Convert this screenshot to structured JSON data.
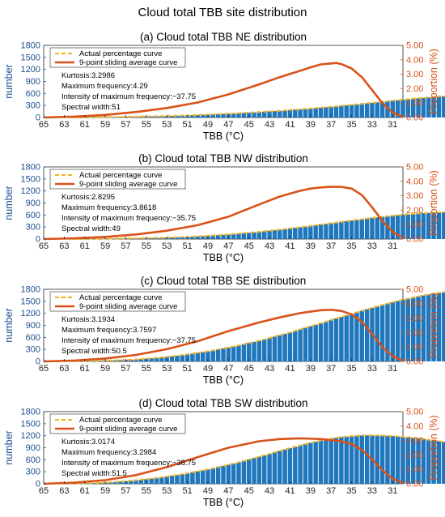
{
  "figure": {
    "title": "Cloud total TBB site distribution"
  },
  "colors": {
    "bar": "#1f77bd",
    "bar_edge": "#0f5a95",
    "dash": "#f5b21b",
    "sliding": "#d95319",
    "left_axis": "#1d4f91",
    "right_axis": "#d95319"
  },
  "chart_data": [
    {
      "type": "bar",
      "title": "(a) Cloud total TBB NE distribution",
      "xlabel": "TBB (°C)",
      "ylabel": "number",
      "ylabel_right": "Proportion (%)",
      "xlim": [
        65,
        30
      ],
      "ylim": [
        0,
        1800
      ],
      "ylim_right": [
        0,
        5
      ],
      "x_ticks": [
        "65",
        "63",
        "61",
        "59",
        "57",
        "55",
        "53",
        "51",
        "49",
        "47",
        "45",
        "43",
        "41",
        "39",
        "37",
        "35",
        "33",
        "31"
      ],
      "y_ticks": [
        "0",
        "300",
        "600",
        "900",
        "1200",
        "1500",
        "1800"
      ],
      "y_ticks_right": [
        "0.00",
        "1.00",
        "2.00",
        "3.00",
        "4.00",
        "5.00"
      ],
      "legend": [
        "Actual percentage curve",
        "9-point sliding average curve"
      ],
      "stats": [
        "Kurtosis:3.2986",
        "Maximum frequency:4.29",
        "Intensity of maximum frequency:−37.75",
        "Spectral width:51"
      ],
      "bars": {
        "x_start": 62.5,
        "step": 0.5,
        "values": [
          4,
          5,
          6,
          7,
          8,
          9,
          10,
          11,
          12,
          14,
          16,
          18,
          20,
          22,
          24,
          26,
          29,
          32,
          35,
          38,
          41,
          45,
          49,
          53,
          58,
          63,
          68,
          73,
          78,
          84,
          90,
          96,
          102,
          108,
          115,
          122,
          129,
          136,
          144,
          152,
          160,
          168,
          177,
          186,
          195,
          205,
          215,
          225,
          235,
          246,
          257,
          268,
          280,
          292,
          304,
          316,
          328,
          341,
          354,
          367,
          380,
          393,
          406,
          419,
          432,
          445,
          457,
          469,
          480,
          491,
          501,
          511,
          520,
          529,
          537,
          545,
          552,
          558,
          563,
          567,
          570,
          572,
          572,
          570,
          566,
          560,
          550,
          536,
          517,
          493,
          463,
          428,
          388,
          343,
          295,
          244,
          190,
          135,
          85,
          45
        ]
      },
      "sliding": {
        "x": [
          65,
          62,
          59,
          56,
          53,
          50,
          47,
          44,
          42,
          40,
          39,
          38,
          37,
          36.5,
          36,
          35,
          34,
          33,
          32,
          31,
          30
        ],
        "y": [
          0.0,
          0.06,
          0.18,
          0.38,
          0.66,
          1.04,
          1.6,
          2.3,
          2.8,
          3.25,
          3.48,
          3.68,
          3.75,
          3.78,
          3.7,
          3.4,
          2.8,
          1.9,
          1.0,
          0.35,
          0.05
        ]
      }
    },
    {
      "type": "bar",
      "title": "(b) Cloud total TBB NW distribution",
      "xlabel": "TBB (°C)",
      "ylabel": "number",
      "ylabel_right": "Proportion (%)",
      "xlim": [
        65,
        30
      ],
      "ylim": [
        0,
        1800
      ],
      "ylim_right": [
        0,
        5
      ],
      "x_ticks": [
        "65",
        "63",
        "61",
        "59",
        "57",
        "55",
        "53",
        "51",
        "49",
        "47",
        "45",
        "43",
        "41",
        "39",
        "37",
        "35",
        "33",
        "31"
      ],
      "y_ticks": [
        "0",
        "300",
        "600",
        "900",
        "1200",
        "1500",
        "1800"
      ],
      "y_ticks_right": [
        "0.00",
        "1.00",
        "2.00",
        "3.00",
        "4.00",
        "5.00"
      ],
      "legend": [
        "Actual percentage curve",
        "9-point sliding average curve"
      ],
      "stats": [
        "Kurtosis:2.8295",
        "Maximum frequency:3.8618",
        "Intensity of maximum frequency:−35.75",
        "Spectral width:49"
      ],
      "bars": {
        "x_start": 62.5,
        "step": 0.5,
        "values": [
          3,
          4,
          5,
          6,
          7,
          8,
          9,
          10,
          11,
          12,
          14,
          16,
          18,
          20,
          22,
          24,
          27,
          30,
          33,
          37,
          41,
          45,
          50,
          55,
          61,
          67,
          74,
          81,
          89,
          97,
          106,
          115,
          125,
          135,
          146,
          157,
          169,
          181,
          194,
          207,
          221,
          235,
          250,
          265,
          280,
          296,
          312,
          328,
          344,
          361,
          378,
          395,
          412,
          429,
          446,
          463,
          480,
          496,
          512,
          527,
          542,
          556,
          570,
          583,
          595,
          607,
          618,
          628,
          637,
          646,
          654,
          661,
          667,
          672,
          677,
          681,
          684,
          687,
          689,
          691,
          692,
          693,
          693,
          692,
          690,
          687,
          682,
          675,
          665,
          651,
          632,
          607,
          574,
          532,
          480,
          418,
          346,
          266,
          180,
          100
        ]
      },
      "sliding": {
        "x": [
          65,
          62,
          59,
          56,
          53,
          50,
          47,
          44,
          42,
          40,
          39,
          38,
          37,
          36,
          35,
          34,
          33,
          32,
          31,
          30
        ],
        "y": [
          0.0,
          0.05,
          0.15,
          0.32,
          0.58,
          0.96,
          1.55,
          2.4,
          2.95,
          3.35,
          3.5,
          3.58,
          3.62,
          3.62,
          3.5,
          3.05,
          2.2,
          1.25,
          0.5,
          0.08
        ]
      }
    },
    {
      "type": "bar",
      "title": "(c) Cloud total TBB SE distribution",
      "xlabel": "TBB (°C)",
      "ylabel": "number",
      "ylabel_right": "Proportion (%)",
      "xlim": [
        65,
        30
      ],
      "ylim": [
        0,
        1800
      ],
      "ylim_right": [
        0,
        5
      ],
      "x_ticks": [
        "65",
        "63",
        "61",
        "59",
        "57",
        "55",
        "53",
        "51",
        "49",
        "47",
        "45",
        "43",
        "41",
        "39",
        "37",
        "35",
        "33",
        "31"
      ],
      "y_ticks": [
        "0",
        "300",
        "600",
        "900",
        "1200",
        "1500",
        "1800"
      ],
      "y_ticks_right": [
        "0.00",
        "1.00",
        "2.00",
        "3.00",
        "4.00",
        "5.00"
      ],
      "legend": [
        "Actual percentage curve",
        "9-point sliding average curve"
      ],
      "stats": [
        "Kurtosis:3.1934",
        "Maximum frequency:3.7597",
        "Intensity of maximum frequency:−37.75",
        "Spectral width:50.5"
      ],
      "bars": {
        "x_start": 62.5,
        "step": 0.5,
        "values": [
          5,
          6,
          8,
          10,
          12,
          14,
          17,
          20,
          24,
          28,
          33,
          38,
          44,
          51,
          59,
          68,
          78,
          89,
          101,
          114,
          128,
          143,
          159,
          176,
          194,
          213,
          233,
          254,
          276,
          299,
          323,
          348,
          374,
          401,
          429,
          458,
          488,
          519,
          551,
          584,
          618,
          653,
          689,
          725,
          762,
          800,
          838,
          877,
          916,
          955,
          994,
          1033,
          1072,
          1111,
          1150,
          1188,
          1226,
          1264,
          1301,
          1338,
          1374,
          1409,
          1443,
          1476,
          1508,
          1539,
          1568,
          1596,
          1622,
          1647,
          1670,
          1691,
          1710,
          1727,
          1742,
          1754,
          1764,
          1771,
          1775,
          1776,
          1774,
          1768,
          1758,
          1744,
          1725,
          1700,
          1669,
          1630,
          1582,
          1524,
          1454,
          1370,
          1270,
          1152,
          1015,
          858,
          681,
          486,
          290,
          120
        ]
      },
      "sliding": {
        "x": [
          65,
          62,
          59,
          56,
          53,
          50,
          47,
          44,
          42,
          40,
          38,
          37,
          36,
          35,
          34,
          33,
          32,
          31,
          30
        ],
        "y": [
          0.0,
          0.06,
          0.2,
          0.45,
          0.85,
          1.4,
          2.1,
          2.7,
          3.05,
          3.35,
          3.55,
          3.58,
          3.5,
          3.25,
          2.75,
          1.9,
          1.0,
          0.35,
          0.05
        ]
      }
    },
    {
      "type": "bar",
      "title": "(d) Cloud total TBB SW distribution",
      "xlabel": "TBB (°C)",
      "ylabel": "number",
      "ylabel_right": "Proportion (%)",
      "xlim": [
        65,
        30
      ],
      "ylim": [
        0,
        1800
      ],
      "ylim_right": [
        0,
        5
      ],
      "x_ticks": [
        "65",
        "63",
        "61",
        "59",
        "57",
        "55",
        "53",
        "51",
        "49",
        "47",
        "45",
        "43",
        "41",
        "39",
        "37",
        "35",
        "33",
        "31"
      ],
      "y_ticks": [
        "0",
        "300",
        "600",
        "900",
        "1200",
        "1500",
        "1800"
      ],
      "y_ticks_right": [
        "0.00",
        "1.00",
        "2.00",
        "3.00",
        "4.00",
        "5.00"
      ],
      "legend": [
        "Actual percentage curve",
        "9-point sliding average curve"
      ],
      "stats": [
        "Kurtosis:3.0174",
        "Maximum frequency:3.2984",
        "Intensity of maximum frequency:−38.75",
        "Spectral width:51.5"
      ],
      "bars": {
        "x_start": 62.5,
        "step": 0.5,
        "values": [
          6,
          8,
          10,
          13,
          16,
          20,
          25,
          31,
          38,
          46,
          55,
          65,
          76,
          88,
          101,
          115,
          130,
          146,
          163,
          181,
          200,
          220,
          241,
          263,
          286,
          310,
          335,
          361,
          388,
          416,
          445,
          475,
          506,
          538,
          571,
          605,
          640,
          676,
          712,
          748,
          784,
          820,
          856,
          891,
          925,
          958,
          990,
          1021,
          1050,
          1077,
          1102,
          1125,
          1146,
          1164,
          1179,
          1191,
          1200,
          1206,
          1209,
          1210,
          1208,
          1204,
          1198,
          1190,
          1181,
          1170,
          1158,
          1145,
          1131,
          1116,
          1100,
          1083,
          1065,
          1046,
          1026,
          1005,
          983,
          960,
          936,
          911,
          885,
          858,
          830,
          801,
          770,
          737,
          702,
          664,
          622,
          576,
          525,
          468,
          405,
          336,
          262,
          186,
          115,
          58,
          22,
          6
        ]
      },
      "sliding": {
        "x": [
          65,
          62,
          59,
          56,
          53,
          50,
          47,
          44,
          42,
          40,
          38,
          36,
          35,
          34,
          33,
          32,
          31,
          30
        ],
        "y": [
          0.0,
          0.08,
          0.25,
          0.6,
          1.15,
          1.85,
          2.5,
          2.95,
          3.1,
          3.15,
          3.1,
          2.95,
          2.75,
          2.35,
          1.7,
          0.95,
          0.35,
          0.08
        ]
      }
    }
  ]
}
